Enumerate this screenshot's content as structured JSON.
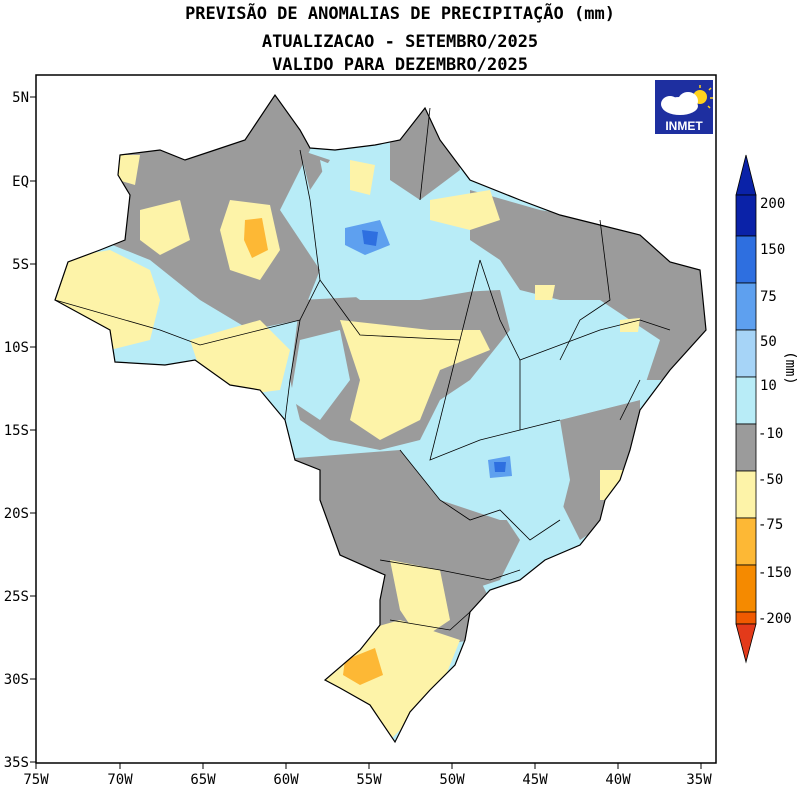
{
  "title": {
    "line1": "PREVISÃO DE ANOMALIAS DE PRECIPITAÇÃO (mm)",
    "line2": "ATUALIZACAO - SETEMBRO/2025",
    "line3": "VALIDO PARA DEZEMBRO/2025"
  },
  "axes": {
    "lat_labels": [
      "5N",
      "EQ",
      "5S",
      "10S",
      "15S",
      "20S",
      "25S",
      "30S",
      "35S"
    ],
    "lon_labels": [
      "75W",
      "70W",
      "65W",
      "60W",
      "55W",
      "50W",
      "45W",
      "40W",
      "35W"
    ]
  },
  "logo": {
    "text": "INMET"
  },
  "colorbar": {
    "unit_label": "(mm)",
    "levels": [
      "200",
      "150",
      "75",
      "50",
      "10",
      "-10",
      "-50",
      "-75",
      "-150",
      "-200"
    ],
    "colors": [
      "#0a22a8",
      "#2e6fe0",
      "#5ea0ef",
      "#a6d4f7",
      "#b8ecf7",
      "#9b9b9b",
      "#fdf3a8",
      "#fdb835",
      "#f58a00",
      "#f05a00",
      "#e33a1a"
    ]
  },
  "palette": {
    "land_base": "#b8ecf7",
    "neutral": "#9b9b9b",
    "dry_light": "#fdf3a8",
    "dry_mid": "#fdb835",
    "wet_mid": "#5ea0ef",
    "wet_strong": "#2e6fe0"
  }
}
